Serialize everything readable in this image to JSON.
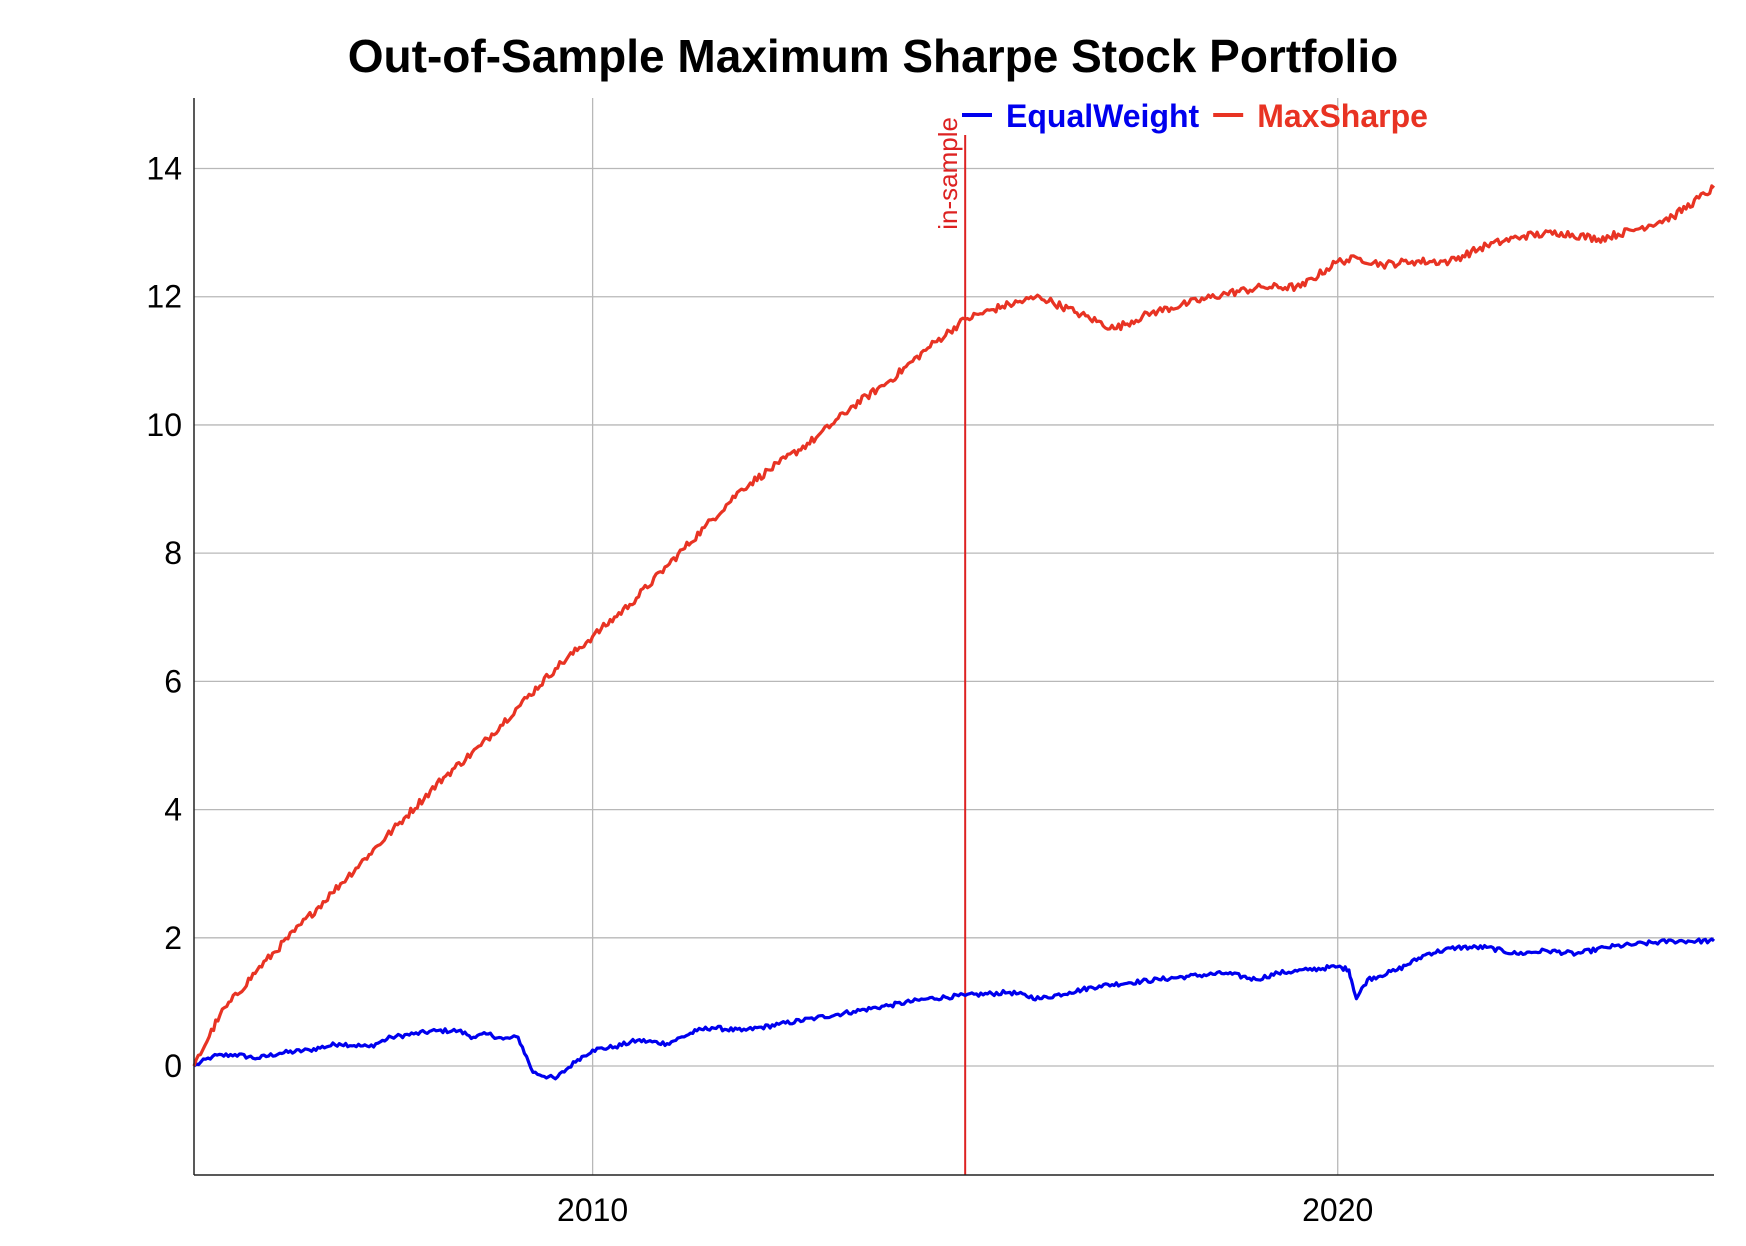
{
  "chart_data": {
    "type": "line",
    "title": "Out-of-Sample Maximum Sharpe Stock Portfolio",
    "xlabel": "",
    "ylabel": "",
    "xlim": [
      2004.65,
      2025.05
    ],
    "ylim": [
      -1.7,
      15.1
    ],
    "x_ticks": [
      2010,
      2020
    ],
    "x_tick_labels": [
      "2010",
      "2020"
    ],
    "y_ticks": [
      0,
      2,
      4,
      6,
      8,
      10,
      12,
      14
    ],
    "y_tick_labels": [
      "0",
      "2",
      "4",
      "6",
      "8",
      "10",
      "12",
      "14"
    ],
    "grid": true,
    "legend_position": "top-center",
    "annotations": [
      {
        "type": "vertical-line",
        "x": 2015.0,
        "label": "in-sample",
        "color": "#dd2222"
      }
    ],
    "series": [
      {
        "name": "EqualWeight",
        "color": "#0000ee",
        "x": [
          2004.65,
          2004.9,
          2005.2,
          2005.5,
          2005.8,
          2006.2,
          2006.6,
          2007.0,
          2007.3,
          2007.6,
          2007.9,
          2008.2,
          2008.4,
          2008.6,
          2008.8,
          2009.0,
          2009.2,
          2009.5,
          2009.8,
          2010.0,
          2010.3,
          2010.6,
          2011.0,
          2011.4,
          2011.6,
          2012.0,
          2012.5,
          2013.0,
          2013.5,
          2014.0,
          2014.5,
          2015.0,
          2015.6,
          2016.0,
          2016.4,
          2016.8,
          2017.2,
          2017.6,
          2018.0,
          2018.5,
          2018.9,
          2019.2,
          2019.6,
          2020.0,
          2020.15,
          2020.25,
          2020.4,
          2020.8,
          2021.2,
          2021.6,
          2022.0,
          2022.4,
          2022.8,
          2023.2,
          2023.6,
          2024.0,
          2024.5,
          2025.05
        ],
        "values": [
          0.0,
          0.15,
          0.18,
          0.12,
          0.2,
          0.25,
          0.35,
          0.3,
          0.45,
          0.5,
          0.55,
          0.55,
          0.45,
          0.5,
          0.42,
          0.45,
          -0.1,
          -0.2,
          0.1,
          0.25,
          0.3,
          0.4,
          0.35,
          0.55,
          0.6,
          0.55,
          0.65,
          0.75,
          0.85,
          0.95,
          1.05,
          1.1,
          1.15,
          1.05,
          1.15,
          1.25,
          1.3,
          1.35,
          1.4,
          1.45,
          1.35,
          1.45,
          1.5,
          1.55,
          1.5,
          1.05,
          1.35,
          1.5,
          1.75,
          1.85,
          1.85,
          1.75,
          1.8,
          1.75,
          1.85,
          1.9,
          1.95,
          1.95
        ]
      },
      {
        "name": "MaxSharpe",
        "color": "#e83323",
        "x": [
          2004.65,
          2005.0,
          2005.5,
          2006.0,
          2006.5,
          2007.0,
          2007.5,
          2008.0,
          2008.5,
          2009.0,
          2009.5,
          2010.0,
          2010.5,
          2011.0,
          2011.5,
          2012.0,
          2012.5,
          2013.0,
          2013.5,
          2014.0,
          2014.5,
          2015.0,
          2015.5,
          2016.0,
          2016.5,
          2017.0,
          2017.5,
          2018.0,
          2018.5,
          2019.0,
          2019.5,
          2020.0,
          2020.3,
          2020.6,
          2021.0,
          2021.5,
          2022.0,
          2022.5,
          2023.0,
          2023.5,
          2024.0,
          2024.5,
          2025.05
        ],
        "values": [
          0.0,
          0.8,
          1.5,
          2.1,
          2.7,
          3.3,
          3.9,
          4.5,
          5.0,
          5.6,
          6.2,
          6.7,
          7.2,
          7.8,
          8.4,
          9.0,
          9.4,
          9.8,
          10.3,
          10.7,
          11.2,
          11.65,
          11.85,
          12.0,
          11.75,
          11.5,
          11.75,
          11.9,
          12.05,
          12.15,
          12.15,
          12.55,
          12.6,
          12.5,
          12.55,
          12.55,
          12.8,
          12.95,
          13.0,
          12.9,
          13.05,
          13.25,
          13.7
        ]
      }
    ]
  }
}
